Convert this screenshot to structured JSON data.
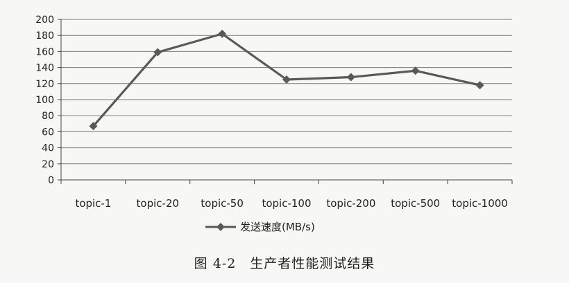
{
  "chart_data": {
    "type": "line",
    "categories": [
      "topic-1",
      "topic-20",
      "topic-50",
      "topic-100",
      "topic-200",
      "topic-500",
      "topic-1000"
    ],
    "series": [
      {
        "name": "发送速度(MB/s)",
        "values": [
          67,
          159,
          182,
          125,
          128,
          136,
          118
        ],
        "color": "#595959",
        "marker": "diamond"
      }
    ],
    "ylim": [
      0,
      200
    ],
    "yticks": [
      "0",
      "20",
      "40",
      "60",
      "80",
      "100",
      "120",
      "140",
      "160",
      "180",
      "200"
    ],
    "grid": true,
    "legend": "bottom"
  },
  "caption": "图 4-2　生产者性能测试结果"
}
